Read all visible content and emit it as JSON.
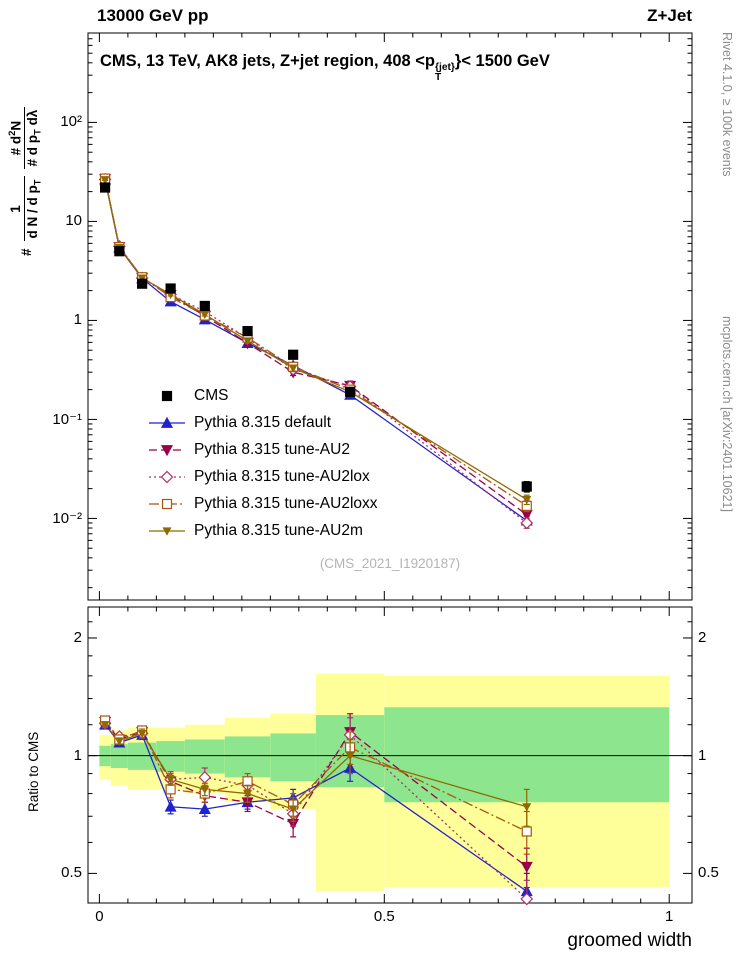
{
  "header": {
    "left": "13000 GeV pp",
    "right": "Z+Jet"
  },
  "title": {
    "main": "CMS, 13 TeV, AK8 jets, Z+jet region, 408 <p",
    "sup": "{jet}",
    "sub": "T",
    "tail": "}< 1500 GeV"
  },
  "watermark": "(CMS_2021_I1920187)",
  "side_texts": {
    "top": "Rivet 4.1.0, ≥ 100k events",
    "bottom": "mcplots.cern.ch [arXiv:2401.10621]"
  },
  "axis": {
    "xlabel": "groomed width",
    "ratio_ylabel": "Ratio to CMS",
    "ylabel": {
      "hash": "#",
      "f1_num": "1",
      "f1_den": "d N / d p",
      "f1_den_sub": "T",
      "f2_num_a": "# d",
      "f2_num_sup": "2",
      "f2_num_b": "N",
      "f2_den_a": "# d p",
      "f2_den_sub": "T",
      "f2_den_b": " dλ"
    },
    "top_yticks": [
      {
        "label": "10²",
        "value": 100
      },
      {
        "label": "10",
        "value": 10
      },
      {
        "label": "1",
        "value": 1
      },
      {
        "label": "10⁻¹",
        "value": 0.1
      },
      {
        "label": "10⁻²",
        "value": 0.01
      }
    ],
    "ratio_yticks": [
      {
        "label": "2",
        "value": 2
      },
      {
        "label": "1",
        "value": 1
      },
      {
        "label": "0.5",
        "value": 0.5
      }
    ],
    "xticks": [
      {
        "label": "0",
        "value": 0
      },
      {
        "label": "0.5",
        "value": 0.5
      },
      {
        "label": "1",
        "value": 1
      }
    ]
  },
  "chart_data": {
    "type": "line",
    "title": "CMS, 13 TeV, AK8 jets, Z+jet region, 408 <p_T^{jet} < 1500 GeV",
    "xlabel": "groomed width",
    "ylabel": "1/(dN/dp_T) d²N/(dp_T dλ)",
    "ratio_ylabel": "Ratio to CMS",
    "xlim": [
      -0.02,
      1.04
    ],
    "top_ylim": [
      0.0015,
      800
    ],
    "ratio_ylim": [
      0.42,
      2.4
    ],
    "bin_edges": [
      0,
      0.02,
      0.05,
      0.1,
      0.15,
      0.22,
      0.3,
      0.38,
      0.5,
      1.0
    ],
    "x": [
      0.01,
      0.035,
      0.075,
      0.125,
      0.185,
      0.26,
      0.34,
      0.44,
      0.75
    ],
    "cms": {
      "label": "CMS",
      "color": "#000000",
      "y": [
        22,
        5.0,
        2.35,
        2.1,
        1.4,
        0.78,
        0.45,
        0.19,
        0.021
      ],
      "yerr_rel": [
        0.06,
        0.05,
        0.05,
        0.05,
        0.05,
        0.06,
        0.07,
        0.09,
        0.12
      ]
    },
    "series": [
      {
        "name": "Pythia 8.315 default",
        "color": "#2222cc",
        "marker": "triangle-up",
        "open": false,
        "dash": "solid",
        "scale": 1,
        "y": [
          26.4,
          5.4,
          2.66,
          1.55,
          1.02,
          0.59,
          0.35,
          0.177,
          0.0095
        ],
        "ratio": [
          1.2,
          1.08,
          1.13,
          0.74,
          0.73,
          0.76,
          0.78,
          0.93,
          0.45
        ],
        "ratio_err": [
          0.02,
          0.02,
          0.03,
          0.03,
          0.03,
          0.03,
          0.04,
          0.07,
          0.05
        ]
      },
      {
        "name": "Pythia 8.315 tune-AU2",
        "color": "#99004c",
        "marker": "triangle-down",
        "open": false,
        "dash": "dashed",
        "scale": 1,
        "y": [
          26.8,
          5.5,
          2.7,
          1.81,
          1.11,
          0.59,
          0.3,
          0.219,
          0.0109
        ],
        "ratio": [
          1.22,
          1.1,
          1.15,
          0.86,
          0.79,
          0.76,
          0.67,
          1.15,
          0.52
        ],
        "ratio_err": [
          0.02,
          0.02,
          0.03,
          0.03,
          0.03,
          0.04,
          0.05,
          0.13,
          0.06
        ]
      },
      {
        "name": "Pythia 8.315 tune-AU2lox",
        "color": "#aa3366",
        "marker": "diamond",
        "open": true,
        "dash": "dotted",
        "scale": 1,
        "y": [
          26.6,
          5.6,
          2.68,
          1.83,
          1.23,
          0.66,
          0.32,
          0.215,
          0.009
        ],
        "ratio": [
          1.21,
          1.12,
          1.14,
          0.87,
          0.88,
          0.84,
          0.71,
          1.13,
          0.43
        ],
        "ratio_err": [
          0.02,
          0.02,
          0.03,
          0.04,
          0.05,
          0.04,
          0.05,
          0.12,
          0.05
        ]
      },
      {
        "name": "Pythia 8.315 tune-AU2loxx",
        "color": "#aa5511",
        "marker": "square",
        "open": true,
        "dash": "dashdot",
        "scale": 1,
        "y": [
          27.1,
          5.5,
          2.73,
          1.72,
          1.12,
          0.67,
          0.34,
          0.2,
          0.0134
        ],
        "ratio": [
          1.23,
          1.1,
          1.16,
          0.82,
          0.8,
          0.86,
          0.75,
          1.05,
          0.64
        ],
        "ratio_err": [
          0.02,
          0.02,
          0.03,
          0.04,
          0.04,
          0.04,
          0.05,
          0.1,
          0.08
        ]
      },
      {
        "name": "Pythia 8.315 tune-AU2m",
        "color": "#8f6a00",
        "marker": "triangle-down",
        "open": false,
        "dash": "solid",
        "scale": 0.7,
        "y": [
          26.4,
          5.45,
          2.68,
          1.83,
          1.15,
          0.62,
          0.33,
          0.19,
          0.0155
        ],
        "ratio": [
          1.2,
          1.09,
          1.14,
          0.87,
          0.82,
          0.8,
          0.73,
          1.0,
          0.74
        ],
        "ratio_err": [
          0.02,
          0.02,
          0.03,
          0.03,
          0.03,
          0.04,
          0.05,
          0.1,
          0.08
        ]
      }
    ],
    "bands": {
      "yellow_color": "#ffff99",
      "green_color": "#8de68d",
      "yellow": [
        [
          0.87,
          1.13
        ],
        [
          0.84,
          1.16
        ],
        [
          0.82,
          1.18
        ],
        [
          0.82,
          1.18
        ],
        [
          0.8,
          1.2
        ],
        [
          0.76,
          1.25
        ],
        [
          0.73,
          1.28
        ],
        [
          0.45,
          1.62
        ],
        [
          0.46,
          1.6
        ]
      ],
      "green": [
        [
          0.94,
          1.06
        ],
        [
          0.93,
          1.07
        ],
        [
          0.92,
          1.08
        ],
        [
          0.91,
          1.09
        ],
        [
          0.9,
          1.1
        ],
        [
          0.88,
          1.12
        ],
        [
          0.86,
          1.14
        ],
        [
          0.83,
          1.27
        ],
        [
          0.76,
          1.33
        ]
      ]
    }
  }
}
